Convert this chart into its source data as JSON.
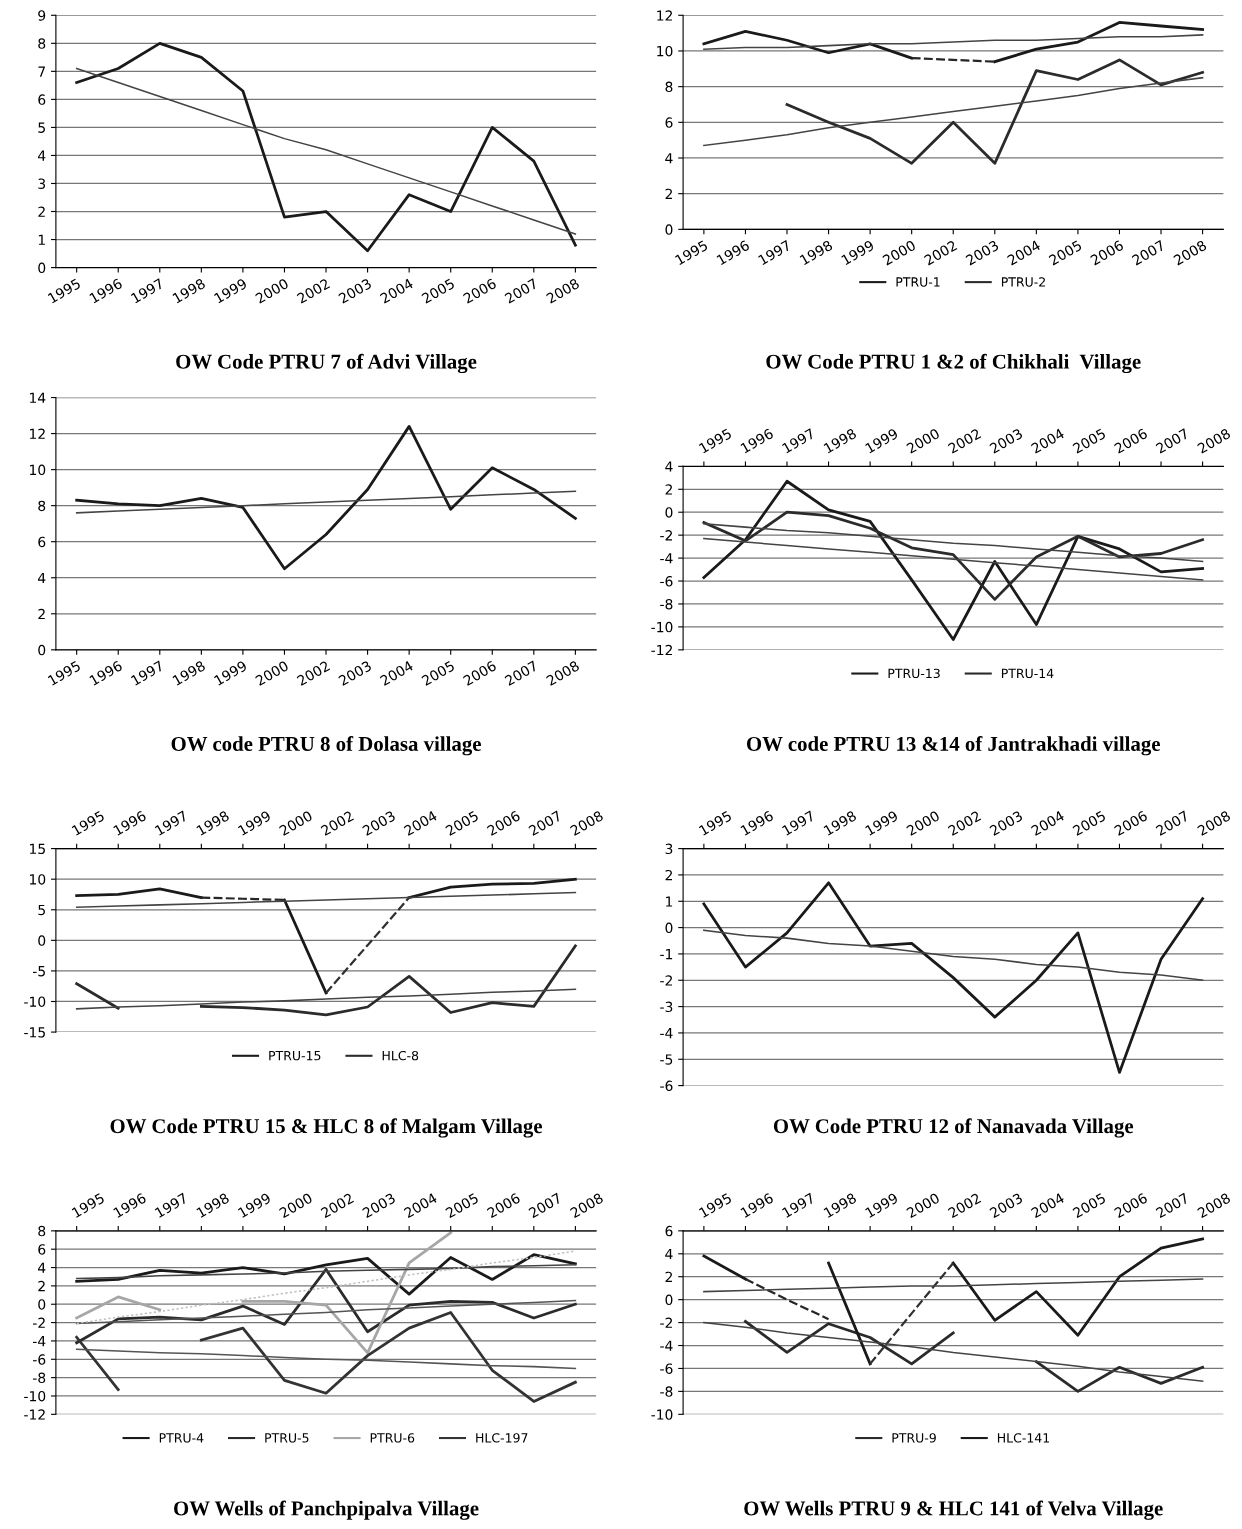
{
  "chart_data": [
    {
      "type": "line",
      "title": "OW Code PTRU 7 of Advi Village",
      "categories": [
        "1995",
        "1996",
        "1997",
        "1998",
        "1999",
        "2000",
        "2002",
        "2003",
        "2004",
        "2005",
        "2006",
        "2007",
        "2008"
      ],
      "ylim": [
        0,
        9
      ],
      "yticks": [
        0,
        1,
        2,
        3,
        4,
        5,
        6,
        7,
        8,
        9
      ],
      "grid": "y",
      "series": [
        {
          "color": "#1a1a1a",
          "values": [
            6.6,
            7.1,
            8.0,
            7.5,
            6.3,
            1.8,
            2.0,
            0.6,
            2.6,
            2.0,
            5.0,
            3.8,
            0.8
          ]
        },
        {
          "color": "#444444",
          "values": [
            7.1,
            6.6,
            6.1,
            5.6,
            5.1,
            4.6,
            4.2,
            3.7,
            3.2,
            2.7,
            2.2,
            1.7,
            1.2
          ]
        }
      ]
    },
    {
      "type": "line",
      "title": "OW Code PTRU 1 &2 of Chikhali  Village",
      "categories": [
        "1995",
        "1996",
        "1997",
        "1998",
        "1999",
        "2000",
        "2002",
        "2003",
        "2004",
        "2005",
        "2006",
        "2007",
        "2008"
      ],
      "ylim": [
        0,
        12
      ],
      "yticks": [
        0,
        2,
        4,
        6,
        8,
        10,
        12
      ],
      "grid": "y",
      "legend": "bottom",
      "series": [
        {
          "name": "PTRU-1",
          "color": "#1a1a1a",
          "values": [
            10.4,
            11.1,
            10.6,
            9.9,
            10.4,
            9.6,
            null,
            9.4,
            10.1,
            10.5,
            11.6,
            11.4,
            11.2
          ]
        },
        {
          "name": "PTRU-2",
          "color": "#2b2b2b",
          "values": [
            null,
            null,
            7.0,
            6.0,
            5.1,
            3.7,
            6.0,
            3.7,
            8.9,
            8.4,
            9.5,
            8.1,
            8.8
          ]
        },
        {
          "color": "#262626",
          "values": [
            null,
            null,
            null,
            null,
            null,
            9.6,
            9.5,
            9.4,
            null,
            null,
            null,
            null,
            null
          ],
          "line_style": "dashed"
        },
        {
          "color": "#444444",
          "values": [
            10.1,
            10.2,
            10.2,
            10.3,
            10.4,
            10.4,
            10.5,
            10.6,
            10.6,
            10.7,
            10.8,
            10.8,
            10.9
          ]
        },
        {
          "color": "#444444",
          "values": [
            4.7,
            5.0,
            5.3,
            5.7,
            6.0,
            6.3,
            6.6,
            6.9,
            7.2,
            7.5,
            7.9,
            8.2,
            8.5
          ]
        }
      ]
    },
    {
      "type": "line",
      "title": "OW code PTRU 8 of Dolasa village",
      "categories": [
        "1995",
        "1996",
        "1997",
        "1998",
        "1999",
        "2000",
        "2002",
        "2003",
        "2004",
        "2005",
        "2006",
        "2007",
        "2008"
      ],
      "ylim": [
        0,
        14
      ],
      "yticks": [
        0,
        2,
        4,
        6,
        8,
        10,
        12,
        14
      ],
      "grid": "y",
      "series": [
        {
          "color": "#1a1a1a",
          "values": [
            8.3,
            8.1,
            8.0,
            8.4,
            7.9,
            4.5,
            6.4,
            8.9,
            12.4,
            7.8,
            10.1,
            8.9,
            7.3
          ]
        },
        {
          "color": "#444444",
          "values": [
            7.6,
            7.7,
            7.8,
            7.9,
            8.0,
            8.1,
            8.2,
            8.3,
            8.4,
            8.5,
            8.6,
            8.7,
            8.8
          ]
        }
      ]
    },
    {
      "type": "line",
      "title": "OW code PTRU 13 &14 of Jantrakhadi village",
      "categories": [
        "1995",
        "1996",
        "1997",
        "1998",
        "1999",
        "2000",
        "2002",
        "2003",
        "2004",
        "2005",
        "2006",
        "2007",
        "2008"
      ],
      "ylim": [
        -12,
        4
      ],
      "yticks": [
        -12,
        -10,
        -8,
        -6,
        -4,
        -2,
        0,
        2,
        4
      ],
      "grid": "y",
      "legend": "bottom",
      "series": [
        {
          "name": "PTRU-13",
          "color": "#1a1a1a",
          "values": [
            -5.7,
            -2.4,
            2.7,
            0.2,
            -0.8,
            -5.9,
            -11.1,
            -4.3,
            -9.8,
            -2.1,
            -3.2,
            -5.2,
            -4.9
          ]
        },
        {
          "name": "PTRU-14",
          "color": "#2b2b2b",
          "values": [
            -0.9,
            -2.5,
            0.0,
            -0.3,
            -1.4,
            -3.1,
            -3.7,
            -7.6,
            -3.9,
            -2.1,
            -3.9,
            -3.6,
            -2.4
          ]
        },
        {
          "color": "#444444",
          "values": [
            -2.3,
            -2.6,
            -2.9,
            -3.2,
            -3.5,
            -3.8,
            -4.1,
            -4.4,
            -4.7,
            -5.0,
            -5.3,
            -5.6,
            -5.9
          ]
        },
        {
          "color": "#444444",
          "values": [
            -1.0,
            -1.3,
            -1.6,
            -1.8,
            -2.1,
            -2.4,
            -2.7,
            -2.9,
            -3.2,
            -3.5,
            -3.8,
            -4.0,
            -4.3
          ]
        }
      ]
    },
    {
      "type": "line",
      "title": "OW Code PTRU 15 & HLC 8 of Malgam Village",
      "categories": [
        "1995",
        "1996",
        "1997",
        "1998",
        "1999",
        "2000",
        "2002",
        "2003",
        "2004",
        "2005",
        "2006",
        "2007",
        "2008"
      ],
      "ylim": [
        -15,
        15
      ],
      "yticks": [
        -15,
        -10,
        -5,
        0,
        5,
        10,
        15
      ],
      "grid": "y",
      "legend": "bottom",
      "series": [
        {
          "name": "PTRU-15",
          "color": "#1a1a1a",
          "values": [
            7.3,
            7.5,
            8.4,
            7.0,
            null,
            6.6,
            -8.6,
            null,
            7.0,
            8.7,
            9.2,
            9.3,
            10.0
          ]
        },
        {
          "name": "HLC-8",
          "color": "#2b2b2b",
          "values": [
            -7.1,
            -11.1,
            null,
            -10.8,
            -11.0,
            -11.4,
            -12.2,
            -10.9,
            -5.9,
            -11.8,
            -10.2,
            -10.8,
            -0.9
          ]
        },
        {
          "color": "#262626",
          "values": [
            null,
            null,
            null,
            7.0,
            6.8,
            6.6,
            null,
            null,
            null,
            null,
            null,
            null,
            null
          ],
          "line_style": "dashed"
        },
        {
          "color": "#303030",
          "values": [
            null,
            null,
            null,
            null,
            null,
            null,
            -8.6,
            -0.8,
            7.0,
            null,
            null,
            null,
            null
          ],
          "line_style": "dashed"
        },
        {
          "color": "#444444",
          "values": [
            5.4,
            5.6,
            5.8,
            6.0,
            6.2,
            6.4,
            6.6,
            6.8,
            7.0,
            7.2,
            7.4,
            7.6,
            7.8
          ]
        },
        {
          "color": "#444444",
          "values": [
            -11.2,
            -10.9,
            -10.7,
            -10.4,
            -10.1,
            -9.9,
            -9.6,
            -9.3,
            -9.1,
            -8.8,
            -8.5,
            -8.3,
            -8.0
          ]
        }
      ]
    },
    {
      "type": "line",
      "title": "OW Code PTRU 12 of Nanavada Village",
      "categories": [
        "1995",
        "1996",
        "1997",
        "1998",
        "1999",
        "2000",
        "2002",
        "2003",
        "2004",
        "2005",
        "2006",
        "2007",
        "2008"
      ],
      "ylim": [
        -6,
        3
      ],
      "yticks": [
        -6,
        -5,
        -4,
        -3,
        -2,
        -1,
        0,
        1,
        2,
        3
      ],
      "grid": "y",
      "series": [
        {
          "color": "#1a1a1a",
          "values": [
            0.9,
            -1.5,
            -0.2,
            1.7,
            -0.7,
            -0.6,
            -1.9,
            -3.4,
            -2.0,
            -0.2,
            -5.5,
            -1.2,
            1.1
          ]
        },
        {
          "color": "#444444",
          "values": [
            -0.1,
            -0.3,
            -0.4,
            -0.6,
            -0.7,
            -0.9,
            -1.1,
            -1.2,
            -1.4,
            -1.5,
            -1.7,
            -1.8,
            -2.0
          ]
        }
      ]
    },
    {
      "type": "line",
      "title": "OW Wells of Panchpipalva Village",
      "categories": [
        "1995",
        "1996",
        "1997",
        "1998",
        "1999",
        "2000",
        "2002",
        "2003",
        "2004",
        "2005",
        "2006",
        "2007",
        "2008"
      ],
      "ylim": [
        -12,
        8
      ],
      "yticks": [
        -12,
        -10,
        -8,
        -6,
        -4,
        -2,
        0,
        2,
        4,
        6,
        8
      ],
      "grid": "y",
      "legend": "bottom",
      "series": [
        {
          "name": "PTRU-4",
          "color": "#1a1a1a",
          "values": [
            2.5,
            2.7,
            3.7,
            3.4,
            4.0,
            3.3,
            4.3,
            5.0,
            1.1,
            5.1,
            2.7,
            5.4,
            4.4
          ]
        },
        {
          "name": "PTRU-5",
          "color": "#2b2b2b",
          "values": [
            -4.2,
            -1.6,
            -1.4,
            -1.7,
            -0.2,
            -2.2,
            3.8,
            -3.0,
            -0.1,
            0.3,
            0.2,
            -1.5,
            0.0
          ]
        },
        {
          "name": "PTRU-6",
          "color": "#a6a6a6",
          "values": [
            -1.5,
            0.8,
            -0.6,
            null,
            0.3,
            0.3,
            -0.1,
            -5.3,
            4.5,
            7.8,
            null,
            null,
            null
          ]
        },
        {
          "name": "HLC-197",
          "color": "#333333",
          "values": [
            -3.6,
            -9.3,
            null,
            -3.9,
            -2.6,
            -8.3,
            -9.7,
            -5.6,
            -2.6,
            -0.9,
            -7.2,
            -10.6,
            -8.5
          ]
        },
        {
          "color": "#444444",
          "values": [
            2.8,
            2.9,
            3.1,
            3.2,
            3.3,
            3.4,
            3.6,
            3.7,
            3.8,
            3.9,
            4.1,
            4.2,
            4.3
          ]
        },
        {
          "color": "#555555",
          "values": [
            -2.1,
            -1.9,
            -1.7,
            -1.5,
            -1.3,
            -1.1,
            -0.9,
            -0.6,
            -0.4,
            -0.2,
            0.0,
            0.2,
            0.4
          ]
        },
        {
          "color": "#bfbfbf",
          "values": [
            -2.1,
            -1.4,
            -0.8,
            -0.1,
            0.5,
            1.2,
            1.8,
            2.5,
            3.2,
            3.8,
            4.5,
            5.1,
            5.8
          ],
          "line_style": "dotted"
        },
        {
          "color": "#555555",
          "values": [
            -4.9,
            -5.1,
            -5.3,
            -5.4,
            -5.6,
            -5.8,
            -6.0,
            -6.1,
            -6.3,
            -6.5,
            -6.7,
            -6.8,
            -7.0
          ]
        }
      ]
    },
    {
      "type": "line",
      "title": "OW Wells PTRU 9 & HLC 141 of Velva Village",
      "categories": [
        "1995",
        "1996",
        "1997",
        "1998",
        "1999",
        "2000",
        "2002",
        "2003",
        "2004",
        "2005",
        "2006",
        "2007",
        "2008"
      ],
      "ylim": [
        -10,
        6
      ],
      "yticks": [
        -10,
        -8,
        -6,
        -4,
        -2,
        0,
        2,
        4,
        6
      ],
      "grid": "y",
      "legend": "bottom",
      "series": [
        {
          "name": "PTRU-9",
          "color": "#2b2b2b",
          "values": [
            null,
            -1.9,
            -4.6,
            -2.1,
            -3.3,
            -5.6,
            -2.9,
            null,
            -5.4,
            -8.0,
            -5.9,
            -7.3,
            -5.9
          ]
        },
        {
          "name": "HLC-141",
          "color": "#1a1a1a",
          "values": [
            3.8,
            1.8,
            null,
            3.2,
            -5.6,
            null,
            3.2,
            -1.8,
            0.7,
            -3.1,
            2.0,
            4.5,
            5.3
          ]
        },
        {
          "color": "#262626",
          "values": [
            null,
            1.8,
            0.0,
            -1.7,
            null,
            null,
            null,
            null,
            null,
            null,
            null,
            null,
            null
          ],
          "line_style": "dashed"
        },
        {
          "color": "#303030",
          "values": [
            null,
            null,
            null,
            null,
            -5.6,
            -1.2,
            3.2,
            null,
            null,
            null,
            null,
            null,
            null
          ],
          "line_style": "dashed"
        },
        {
          "color": "#444444",
          "values": [
            0.7,
            0.8,
            0.9,
            1.0,
            1.1,
            1.2,
            1.2,
            1.3,
            1.4,
            1.5,
            1.6,
            1.7,
            1.8
          ]
        },
        {
          "color": "#444444",
          "values": [
            -2.0,
            -2.4,
            -2.9,
            -3.3,
            -3.7,
            -4.1,
            -4.6,
            -5.0,
            -5.4,
            -5.8,
            -6.3,
            -6.7,
            -7.1
          ]
        }
      ]
    }
  ]
}
